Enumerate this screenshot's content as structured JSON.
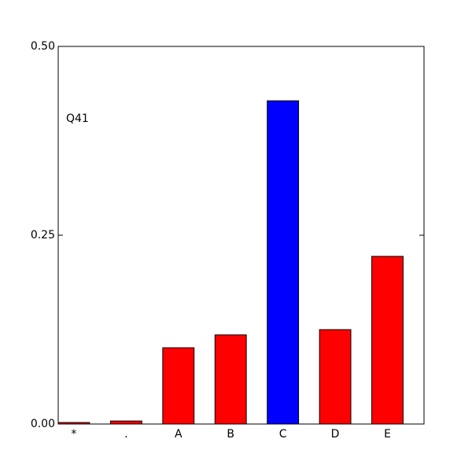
{
  "chart_data": {
    "type": "bar",
    "annotations": [
      "Q41"
    ],
    "categories": [
      "*",
      ".",
      "A",
      "B",
      "C",
      "D",
      "E"
    ],
    "values": [
      0.002,
      0.004,
      0.101,
      0.118,
      0.428,
      0.125,
      0.222
    ],
    "colors": [
      "#ff0000",
      "#ff0000",
      "#ff0000",
      "#ff0000",
      "#0000ff",
      "#ff0000",
      "#ff0000"
    ],
    "ylim": [
      0,
      0.5
    ],
    "yticks": [
      {
        "value": 0,
        "label": "0.00"
      },
      {
        "value": 0.25,
        "label": "0.25"
      },
      {
        "value": 0.5,
        "label": "0.50"
      }
    ],
    "grid": false
  }
}
